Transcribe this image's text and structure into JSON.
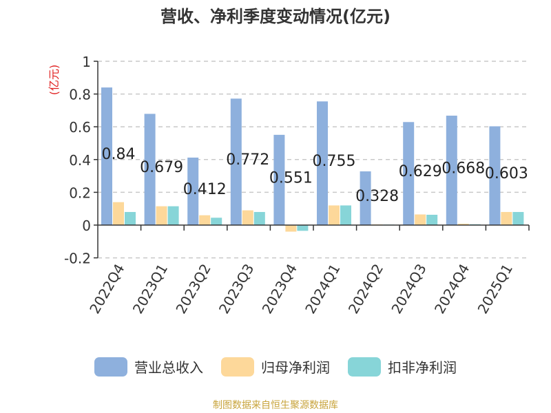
{
  "title": "营收、净利季度变动情况(亿元)",
  "source": "制图数据来自恒生聚源数据库",
  "chart_data": {
    "type": "bar",
    "unit": "(亿元)",
    "categories": [
      "2022Q4",
      "2023Q1",
      "2023Q2",
      "2023Q3",
      "2023Q4",
      "2024Q1",
      "2024Q2",
      "2024Q3",
      "2024Q4",
      "2025Q1"
    ],
    "series": [
      {
        "name": "营业总收入",
        "color": "#8eb0dd",
        "values": [
          0.84,
          0.679,
          0.412,
          0.772,
          0.551,
          0.755,
          0.328,
          0.629,
          0.668,
          0.603
        ]
      },
      {
        "name": "归母净利润",
        "color": "#fdd89a",
        "values": [
          0.14,
          0.115,
          0.06,
          0.09,
          -0.04,
          0.12,
          0.004,
          0.065,
          0.008,
          0.08
        ]
      },
      {
        "name": "扣非净利润",
        "color": "#87d5d8",
        "values": [
          0.08,
          0.115,
          0.045,
          0.08,
          -0.035,
          0.12,
          0.003,
          0.063,
          0.005,
          0.08
        ]
      }
    ],
    "data_labels": [
      "0.84",
      "0.679",
      "0.412",
      "0.772",
      "0.551",
      "0.755",
      "0.328",
      "0.629",
      "0.668",
      "0.603"
    ],
    "yticks": [
      "1",
      "0.8",
      "0.6",
      "0.4",
      "0.2",
      "0",
      "-0.2"
    ],
    "ytick_values": [
      1,
      0.8,
      0.6,
      0.4,
      0.2,
      0,
      -0.2
    ],
    "ylim": [
      -0.2,
      1
    ],
    "grid": true,
    "legend_position": "bottom"
  }
}
